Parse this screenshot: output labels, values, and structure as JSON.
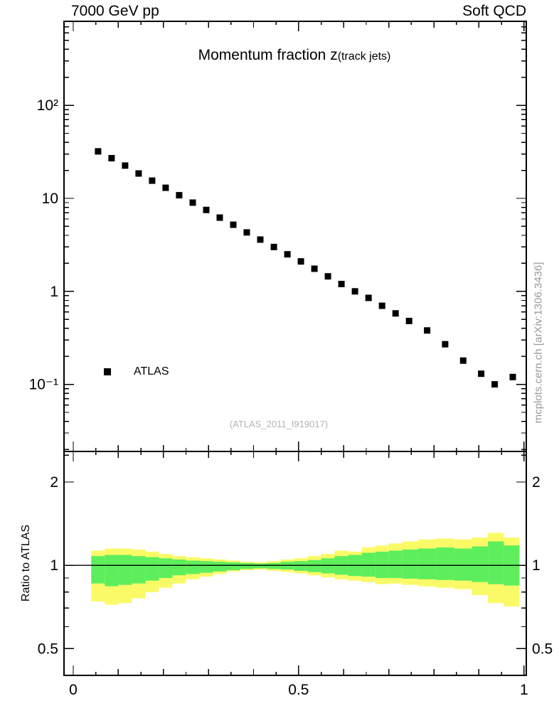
{
  "header": {
    "left": "7000 GeV pp",
    "right": "Soft QCD"
  },
  "title": {
    "main": "Momentum fraction z",
    "sub": "(track jets)"
  },
  "legend": {
    "label": "ATLAS"
  },
  "watermark": "(ATLAS_2011_I919017)",
  "credit": "mcplots.cern.ch [arXiv:1306.3436]",
  "colors": {
    "marker": "#000000",
    "band_outer": "#fafa66",
    "band_inner": "#5dee5d",
    "reference_line": "#000000",
    "watermark_text": "#b3b3b3",
    "credit_text": "#999999"
  },
  "chart_data": [
    {
      "type": "scatter",
      "panel": "main",
      "title": "Momentum fraction z (track jets)",
      "x_scale": "linear",
      "x_range": [
        0,
        1
      ],
      "y_scale": "log",
      "y_range": [
        0.019,
        800
      ],
      "grid": false,
      "legend_position": "lower-left-inside",
      "x_ticks": [
        {
          "v": 0,
          "label": "0"
        },
        {
          "v": 0.5,
          "label": "0.5"
        },
        {
          "v": 1,
          "label": "1"
        }
      ],
      "y_ticks": [
        {
          "v": 100,
          "label": "10²"
        },
        {
          "v": 10,
          "label": "10"
        },
        {
          "v": 1,
          "label": "1"
        },
        {
          "v": 0.1,
          "label": "10⁻¹"
        }
      ],
      "series": [
        {
          "name": "ATLAS",
          "marker": "filled-square",
          "color": "#000000",
          "x": [
            0.055,
            0.085,
            0.115,
            0.145,
            0.175,
            0.205,
            0.235,
            0.265,
            0.295,
            0.325,
            0.355,
            0.385,
            0.415,
            0.445,
            0.475,
            0.505,
            0.535,
            0.565,
            0.595,
            0.625,
            0.655,
            0.685,
            0.715,
            0.745,
            0.785,
            0.825,
            0.865,
            0.905,
            0.935,
            0.975
          ],
          "y": [
            32,
            27,
            22.5,
            18.5,
            15.5,
            13,
            10.8,
            9.0,
            7.5,
            6.2,
            5.2,
            4.3,
            3.6,
            3.0,
            2.5,
            2.1,
            1.75,
            1.45,
            1.2,
            1.0,
            0.85,
            0.7,
            0.58,
            0.48,
            0.38,
            0.27,
            0.18,
            0.13,
            0.1,
            0.12
          ]
        }
      ]
    },
    {
      "type": "band-ratio",
      "panel": "ratio",
      "ylabel": "Ratio to ATLAS",
      "y_scale": "log",
      "y_range": [
        0.4,
        2.58
      ],
      "reference_line": 1.0,
      "y_ticks": [
        {
          "v": 2,
          "label": "2"
        },
        {
          "v": 1,
          "label": "1"
        },
        {
          "v": 0.5,
          "label": "0.5"
        }
      ],
      "bin_edges": [
        0.04,
        0.07,
        0.1,
        0.13,
        0.16,
        0.19,
        0.22,
        0.25,
        0.28,
        0.31,
        0.34,
        0.37,
        0.4,
        0.43,
        0.46,
        0.49,
        0.52,
        0.55,
        0.58,
        0.61,
        0.64,
        0.67,
        0.7,
        0.73,
        0.765,
        0.805,
        0.845,
        0.885,
        0.92,
        0.955,
        0.99
      ],
      "bands": [
        {
          "name": "mc-spread-outer",
          "color": "#fafa66",
          "lo": [
            0.74,
            0.72,
            0.73,
            0.76,
            0.8,
            0.83,
            0.86,
            0.89,
            0.91,
            0.93,
            0.95,
            0.96,
            0.965,
            0.955,
            0.945,
            0.935,
            0.92,
            0.905,
            0.89,
            0.88,
            0.87,
            0.855,
            0.86,
            0.85,
            0.84,
            0.83,
            0.82,
            0.78,
            0.73,
            0.71
          ],
          "hi": [
            1.13,
            1.15,
            1.15,
            1.14,
            1.12,
            1.1,
            1.08,
            1.07,
            1.06,
            1.05,
            1.04,
            1.03,
            1.025,
            1.035,
            1.05,
            1.06,
            1.08,
            1.1,
            1.13,
            1.12,
            1.16,
            1.18,
            1.2,
            1.22,
            1.24,
            1.25,
            1.24,
            1.26,
            1.31,
            1.26
          ]
        },
        {
          "name": "mc-spread-inner",
          "color": "#5dee5d",
          "lo": [
            0.86,
            0.84,
            0.85,
            0.86,
            0.88,
            0.9,
            0.92,
            0.93,
            0.94,
            0.95,
            0.96,
            0.97,
            0.975,
            0.97,
            0.965,
            0.955,
            0.945,
            0.935,
            0.925,
            0.915,
            0.91,
            0.9,
            0.9,
            0.895,
            0.89,
            0.885,
            0.88,
            0.87,
            0.855,
            0.845
          ],
          "hi": [
            1.08,
            1.09,
            1.09,
            1.08,
            1.07,
            1.06,
            1.05,
            1.04,
            1.035,
            1.03,
            1.025,
            1.02,
            1.015,
            1.02,
            1.03,
            1.035,
            1.045,
            1.06,
            1.08,
            1.09,
            1.11,
            1.12,
            1.13,
            1.14,
            1.15,
            1.16,
            1.15,
            1.17,
            1.22,
            1.18
          ]
        }
      ]
    }
  ]
}
